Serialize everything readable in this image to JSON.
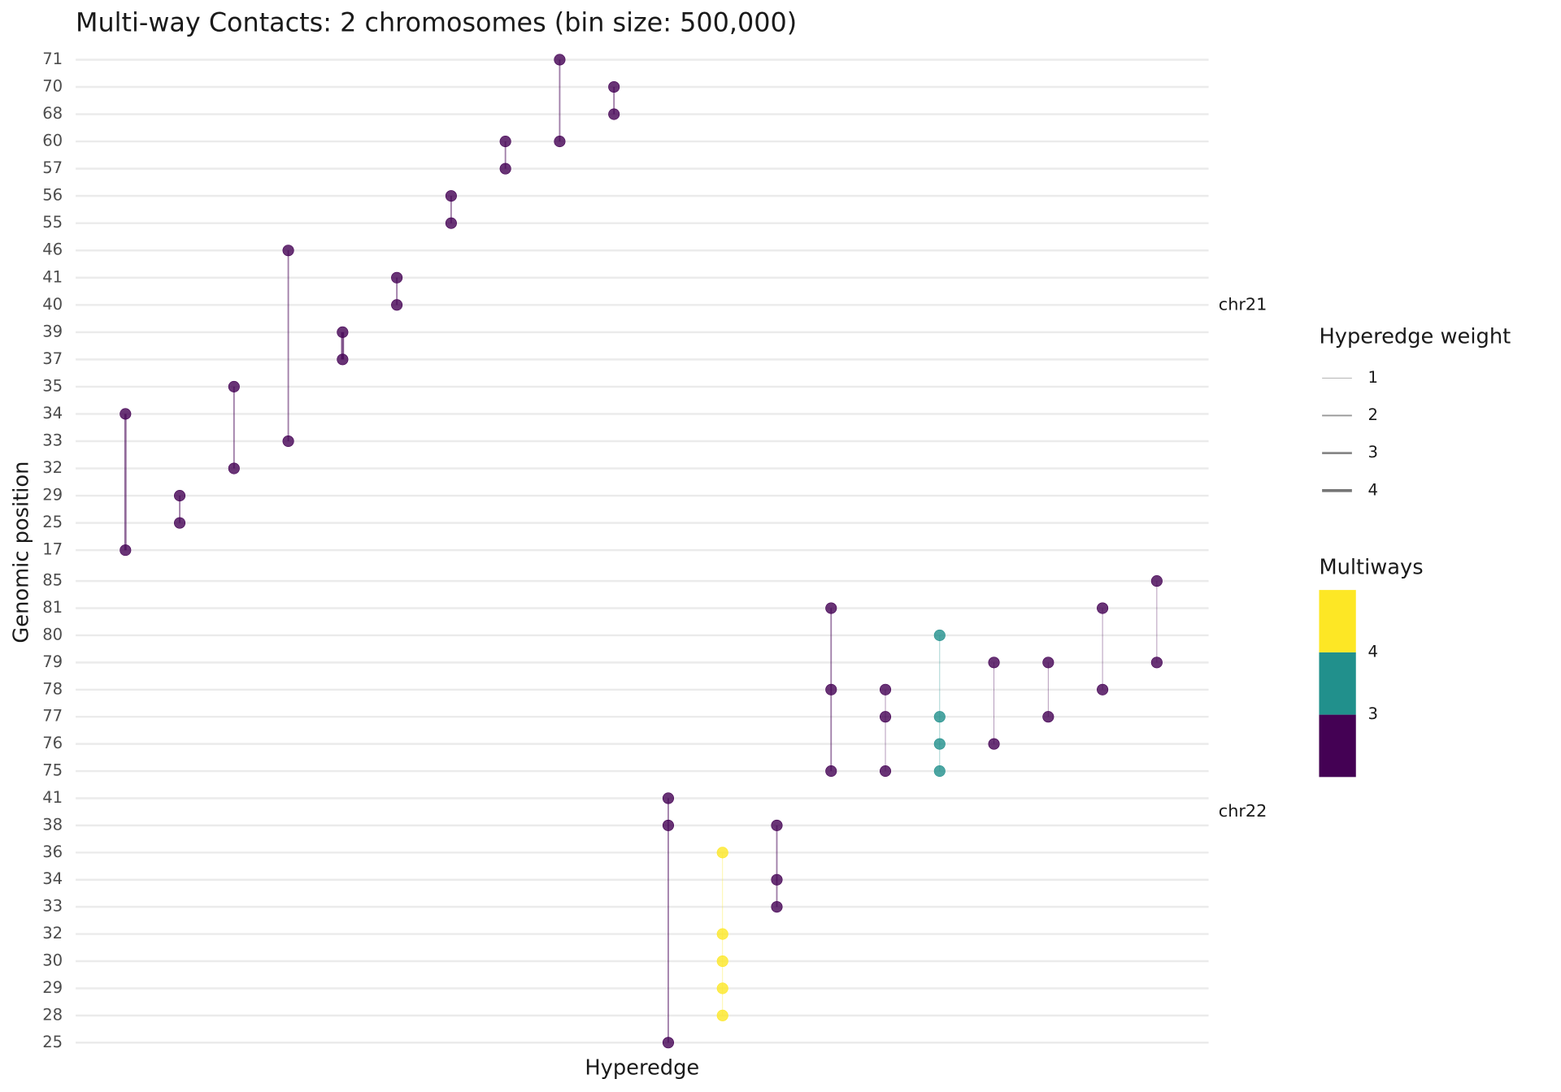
{
  "chart_data": {
    "type": "hyperedge",
    "title": "Multi-way Contacts: 2 chromosomes (bin size: 500,000)",
    "x_label": "Hyperedge",
    "y_label": "Genomic position",
    "grid": true,
    "facets": [
      {
        "label": "chr21",
        "levels": [
          17,
          25,
          29,
          32,
          33,
          34,
          35,
          37,
          39,
          40,
          41,
          46,
          55,
          56,
          57,
          60,
          68,
          70,
          71
        ]
      },
      {
        "label": "chr22",
        "levels": [
          25,
          28,
          29,
          30,
          32,
          33,
          34,
          36,
          38,
          41,
          75,
          76,
          77,
          78,
          79,
          80,
          81,
          85
        ]
      }
    ],
    "hyperedges": [
      {
        "facet": "chr21",
        "bins": [
          34,
          17
        ],
        "weight": 3
      },
      {
        "facet": "chr21",
        "bins": [
          29,
          25
        ],
        "weight": 2
      },
      {
        "facet": "chr21",
        "bins": [
          35,
          32
        ],
        "weight": 2
      },
      {
        "facet": "chr21",
        "bins": [
          46,
          33
        ],
        "weight": 2
      },
      {
        "facet": "chr21",
        "bins": [
          39,
          37
        ],
        "weight": 4
      },
      {
        "facet": "chr21",
        "bins": [
          41,
          40
        ],
        "weight": 2
      },
      {
        "facet": "chr21",
        "bins": [
          56,
          55
        ],
        "weight": 2
      },
      {
        "facet": "chr21",
        "bins": [
          60,
          57
        ],
        "weight": 2
      },
      {
        "facet": "chr21",
        "bins": [
          71,
          60
        ],
        "weight": 2
      },
      {
        "facet": "chr21",
        "bins": [
          70,
          68
        ],
        "weight": 2
      },
      {
        "facet": "chr22",
        "bins": [
          41,
          38,
          25
        ],
        "weight": 2
      },
      {
        "facet": "chr22",
        "bins": [
          36,
          32,
          30,
          29,
          28
        ],
        "weight": 1
      },
      {
        "facet": "chr22",
        "bins": [
          38,
          34,
          33
        ],
        "weight": 2
      },
      {
        "facet": "chr22",
        "bins": [
          81,
          78,
          75
        ],
        "weight": 2
      },
      {
        "facet": "chr22",
        "bins": [
          78,
          77,
          75
        ],
        "weight": 1
      },
      {
        "facet": "chr22",
        "bins": [
          80,
          77,
          76,
          75
        ],
        "weight": 1
      },
      {
        "facet": "chr22",
        "bins": [
          79,
          76
        ],
        "weight": 1
      },
      {
        "facet": "chr22",
        "bins": [
          79,
          77
        ],
        "weight": 1
      },
      {
        "facet": "chr22",
        "bins": [
          81,
          78
        ],
        "weight": 1
      },
      {
        "facet": "chr22",
        "bins": [
          85,
          79
        ],
        "weight": 1
      }
    ],
    "weight_legend": {
      "title": "Hyperedge weight",
      "values": [
        1,
        2,
        3,
        4
      ]
    },
    "multiway_legend": {
      "title": "Multiways",
      "breaks": [
        3,
        4
      ],
      "colors": [
        "#440154",
        "#21908c",
        "#fde725"
      ]
    }
  }
}
